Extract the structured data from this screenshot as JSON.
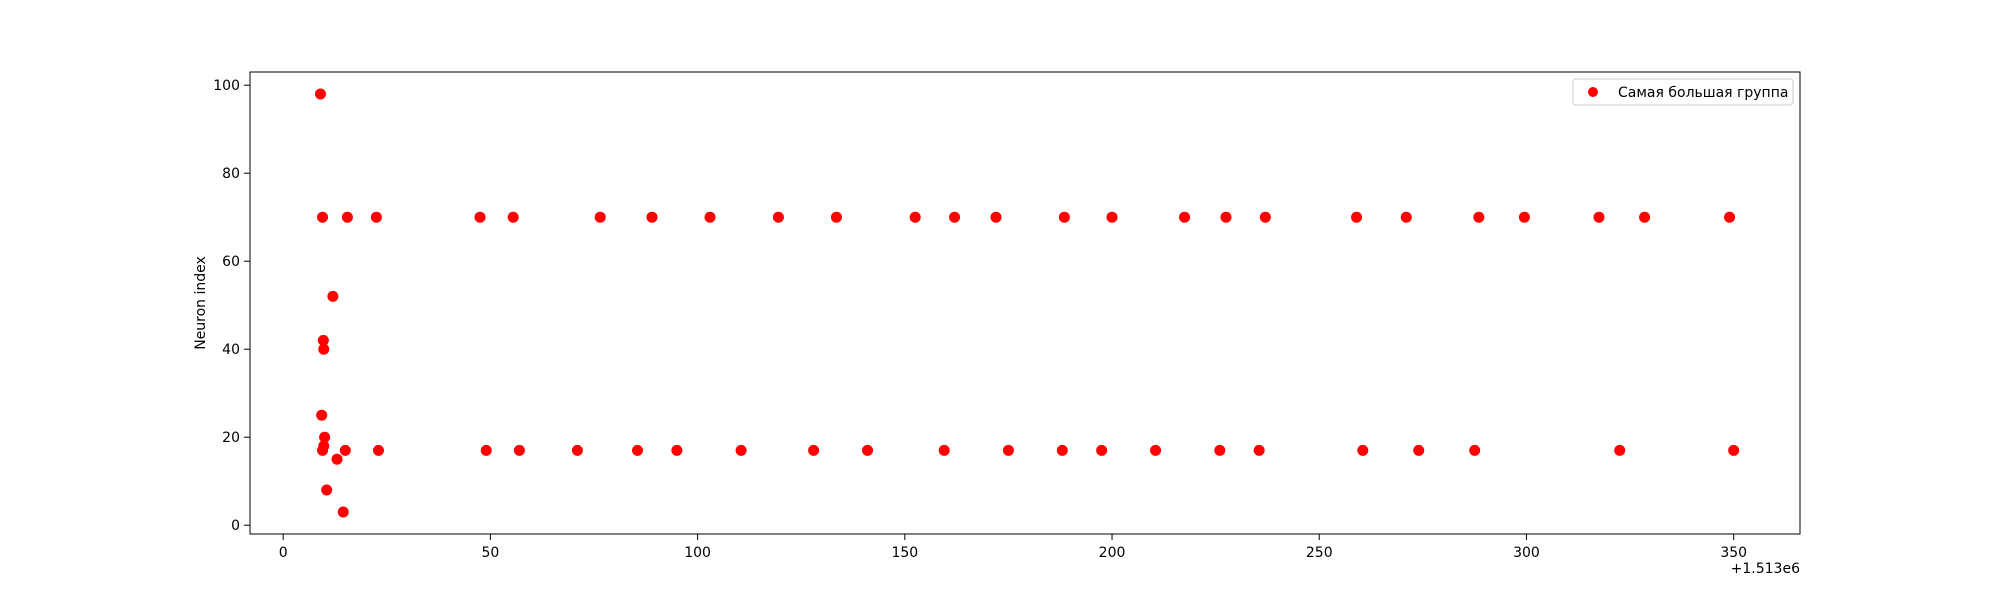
{
  "chart_data": {
    "type": "scatter",
    "xlabel": "",
    "ylabel": "Neuron index",
    "x_offset_label": "+1.513e6",
    "xlim": [
      -8,
      366
    ],
    "ylim": [
      -2,
      103
    ],
    "xticks": [
      0,
      50,
      100,
      150,
      200,
      250,
      300,
      350
    ],
    "yticks": [
      0,
      20,
      40,
      60,
      80,
      100
    ],
    "grid": false,
    "legend_position": "top-right",
    "marker_color": "#ff0000",
    "series": [
      {
        "name": "Самая большая группа",
        "points": [
          [
            9,
            98
          ],
          [
            9.5,
            70
          ],
          [
            15.5,
            70
          ],
          [
            22.5,
            70
          ],
          [
            47.5,
            70
          ],
          [
            55.5,
            70
          ],
          [
            76.5,
            70
          ],
          [
            89,
            70
          ],
          [
            103,
            70
          ],
          [
            119.5,
            70
          ],
          [
            133.5,
            70
          ],
          [
            152.5,
            70
          ],
          [
            162,
            70
          ],
          [
            172,
            70
          ],
          [
            188.5,
            70
          ],
          [
            200,
            70
          ],
          [
            217.5,
            70
          ],
          [
            227.5,
            70
          ],
          [
            237,
            70
          ],
          [
            259,
            70
          ],
          [
            271,
            70
          ],
          [
            288.5,
            70
          ],
          [
            299.5,
            70
          ],
          [
            317.5,
            70
          ],
          [
            328.5,
            70
          ],
          [
            349,
            70
          ],
          [
            12,
            52
          ],
          [
            9.7,
            42
          ],
          [
            9.8,
            40
          ],
          [
            9.3,
            25
          ],
          [
            10,
            20
          ],
          [
            9.8,
            18
          ],
          [
            9.5,
            17
          ],
          [
            13,
            15
          ],
          [
            10.5,
            8
          ],
          [
            14.5,
            3
          ],
          [
            15,
            17
          ],
          [
            23,
            17
          ],
          [
            49,
            17
          ],
          [
            57,
            17
          ],
          [
            71,
            17
          ],
          [
            85.5,
            17
          ],
          [
            95,
            17
          ],
          [
            110.5,
            17
          ],
          [
            128,
            17
          ],
          [
            141,
            17
          ],
          [
            159.5,
            17
          ],
          [
            175,
            17
          ],
          [
            188,
            17
          ],
          [
            197.5,
            17
          ],
          [
            210.5,
            17
          ],
          [
            226,
            17
          ],
          [
            235.5,
            17
          ],
          [
            260.5,
            17
          ],
          [
            274,
            17
          ],
          [
            287.5,
            17
          ],
          [
            322.5,
            17
          ],
          [
            350,
            17
          ]
        ]
      }
    ]
  }
}
